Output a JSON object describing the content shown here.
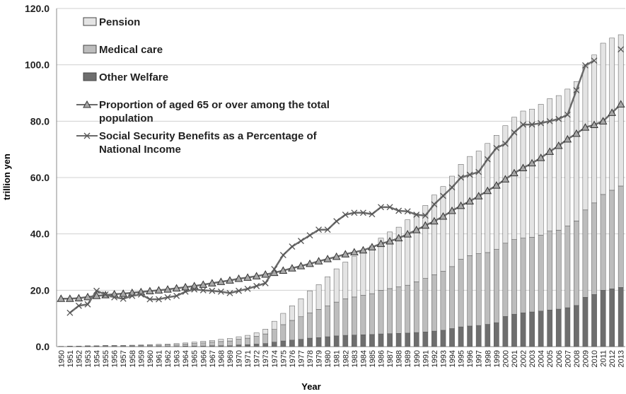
{
  "chart_data": {
    "type": "bar",
    "stacked": true,
    "x_label": "Year",
    "y_label": "trillion yen",
    "categories": [
      "1950",
      "1951",
      "1952",
      "1953",
      "1954",
      "1955",
      "1956",
      "1957",
      "1958",
      "1959",
      "1960",
      "1961",
      "1962",
      "1963",
      "1964",
      "1965",
      "1966",
      "1967",
      "1968",
      "1969",
      "1970",
      "1971",
      "1972",
      "1973",
      "1974",
      "1975",
      "1976",
      "1977",
      "1978",
      "1979",
      "1980",
      "1981",
      "1982",
      "1983",
      "1984",
      "1985",
      "1986",
      "1987",
      "1988",
      "1989",
      "1990",
      "1991",
      "1992",
      "1993",
      "1994",
      "1995",
      "1996",
      "1997",
      "1998",
      "1999",
      "2000",
      "2001",
      "2002",
      "2003",
      "2004",
      "2005",
      "2006",
      "2007",
      "2008",
      "2009",
      "2010",
      "2011",
      "2012",
      "2013"
    ],
    "ylim": [
      0,
      120
    ],
    "yticks": [
      {
        "value": 0,
        "label": "0.0"
      },
      {
        "value": 20,
        "label": "20.0"
      },
      {
        "value": 40,
        "label": "40.0"
      },
      {
        "value": 60,
        "label": "60.0"
      },
      {
        "value": 80,
        "label": "80.0"
      },
      {
        "value": 100,
        "label": "100.0"
      },
      {
        "value": 120,
        "label": "120.0"
      }
    ],
    "grid": true,
    "series": [
      {
        "name": "Pension",
        "color": "#e4e4e4",
        "type": "bar",
        "values": [
          0,
          0,
          0,
          0.1,
          0.1,
          0.1,
          0.1,
          0.1,
          0.2,
          0.2,
          0.2,
          0.3,
          0.3,
          0.4,
          0.4,
          0.5,
          0.6,
          0.6,
          0.8,
          0.9,
          0.8,
          1.0,
          1.2,
          1.7,
          2.9,
          4.0,
          5.2,
          6.4,
          7.8,
          8.8,
          10.3,
          11.8,
          13.0,
          14.4,
          15.4,
          16.9,
          18.5,
          20.1,
          21.2,
          23.2,
          24.2,
          25.9,
          28.3,
          30.0,
          32.1,
          33.7,
          35.2,
          36.4,
          38.7,
          40.5,
          41.7,
          43.4,
          45.1,
          45.5,
          46.4,
          47.0,
          47.8,
          48.6,
          49.5,
          51.4,
          52.5,
          53.7,
          54.0,
          53.7
        ]
      },
      {
        "name": "Medical care",
        "color": "#bdbdbd",
        "type": "bar",
        "values": [
          0.05,
          0.1,
          0.1,
          0.1,
          0.1,
          0.2,
          0.2,
          0.2,
          0.2,
          0.3,
          0.4,
          0.4,
          0.5,
          0.6,
          0.7,
          0.9,
          1.1,
          1.3,
          1.5,
          1.7,
          2.1,
          2.3,
          2.8,
          3.4,
          4.5,
          5.8,
          7.0,
          8.0,
          9.0,
          10.0,
          11.0,
          12.0,
          13.0,
          13.5,
          14.0,
          14.5,
          15.5,
          16.0,
          16.5,
          17.0,
          18.0,
          19.0,
          20.0,
          21.0,
          22.0,
          24.0,
          25.0,
          25.5,
          25.5,
          26.0,
          26.0,
          26.5,
          26.5,
          26.5,
          27.0,
          28.0,
          28.0,
          29.0,
          30.0,
          31.0,
          32.5,
          34.0,
          35.0,
          36.0
        ]
      },
      {
        "name": "Other Welfare",
        "color": "#6e6e6e",
        "type": "bar",
        "values": [
          0.05,
          0.1,
          0.1,
          0.1,
          0.1,
          0.1,
          0.1,
          0.1,
          0.1,
          0.1,
          0.1,
          0.1,
          0.1,
          0.1,
          0.2,
          0.2,
          0.2,
          0.3,
          0.3,
          0.3,
          0.6,
          0.7,
          0.9,
          1.1,
          1.6,
          2.0,
          2.3,
          2.6,
          3.0,
          3.2,
          3.5,
          3.8,
          4.0,
          4.1,
          4.2,
          4.3,
          4.5,
          4.6,
          4.7,
          4.8,
          5.0,
          5.2,
          5.5,
          5.8,
          6.4,
          7.0,
          7.3,
          7.5,
          7.9,
          8.5,
          10.7,
          11.5,
          12.0,
          12.3,
          12.6,
          13.0,
          13.3,
          13.8,
          14.6,
          17.5,
          18.5,
          20.0,
          20.5,
          21.0
        ]
      },
      {
        "name": "Proportion of aged 65 or over among the total population",
        "color": "#6a6a6a",
        "type": "line",
        "marker": "triangle",
        "values": [
          17,
          17,
          17.2,
          17.6,
          18,
          18.3,
          18.6,
          18.8,
          19.1,
          19.4,
          19.7,
          20,
          20.3,
          20.7,
          21.1,
          21.5,
          22,
          22.5,
          23,
          23.5,
          24.1,
          24.5,
          25,
          25.6,
          26.2,
          27,
          27.8,
          28.6,
          29.4,
          30.3,
          31.1,
          31.9,
          32.8,
          33.5,
          34.2,
          35.3,
          36.5,
          37.4,
          38.5,
          39.9,
          41.4,
          43,
          44.5,
          46.2,
          48.2,
          50,
          51.6,
          53.4,
          55.3,
          57.2,
          59.4,
          61.6,
          63.4,
          65.1,
          67,
          69.2,
          71.3,
          73.6,
          75.6,
          77.8,
          78.7,
          80,
          83,
          86
        ]
      },
      {
        "name": "Social Security Benefits as a Percentage of National Income",
        "color": "#6a6a6a",
        "type": "line",
        "marker": "x",
        "values": [
          null,
          12,
          14.5,
          15,
          19.8,
          18.5,
          17.5,
          17,
          18,
          18.5,
          16.8,
          16.8,
          17.5,
          18,
          19.5,
          20.3,
          20,
          19.8,
          19.5,
          19,
          19.8,
          20.5,
          21.5,
          22.5,
          27.5,
          32.5,
          35.5,
          37.5,
          39.5,
          41.5,
          41.5,
          44.5,
          46.8,
          47.5,
          47.5,
          47,
          49.5,
          49.5,
          48.2,
          48,
          46.8,
          46.5,
          50.5,
          53.5,
          56.5,
          60,
          61,
          62,
          66.5,
          70.5,
          72,
          76,
          78.8,
          78.8,
          79.3,
          80,
          80.8,
          82.3,
          91,
          99.8,
          101.5,
          null,
          null,
          105.5
        ]
      }
    ]
  }
}
